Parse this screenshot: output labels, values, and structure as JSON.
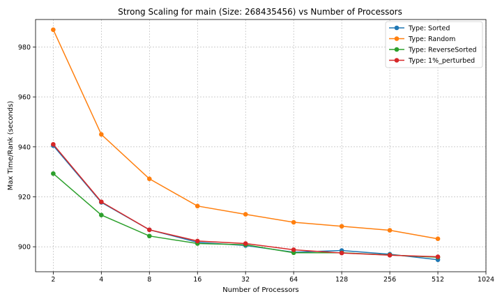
{
  "chart_data": {
    "type": "line",
    "title": "Strong Scaling for main (Size: 268435456) vs Number of Processors",
    "xlabel": "Number of Processors",
    "ylabel": "Max Time/Rank (seconds)",
    "x_scale": "log2",
    "x_ticks": [
      2,
      4,
      8,
      16,
      32,
      64,
      128,
      256,
      512,
      1024
    ],
    "xlim": [
      1.55,
      1024
    ],
    "y_ticks": [
      900,
      920,
      940,
      960,
      980
    ],
    "ylim": [
      890,
      991
    ],
    "grid": true,
    "legend_position": "top-right",
    "x": [
      2,
      4,
      8,
      16,
      32,
      64,
      128,
      256,
      512
    ],
    "series": [
      {
        "name": "Type: Sorted",
        "color": "#1f77b4",
        "values": [
          940.5,
          917.8,
          906.8,
          901.8,
          900.5,
          897.8,
          898.5,
          897.0,
          894.8
        ]
      },
      {
        "name": "Type: Random",
        "color": "#ff7f0e",
        "values": [
          986.9,
          945.0,
          927.2,
          916.3,
          913.0,
          909.8,
          908.2,
          906.6,
          903.2
        ]
      },
      {
        "name": "Type: ReverseSorted",
        "color": "#2ca02c",
        "values": [
          929.3,
          912.7,
          904.3,
          901.3,
          900.8,
          897.6,
          897.6,
          896.7,
          895.8
        ]
      },
      {
        "name": "Type: 1%_perturbed",
        "color": "#d62728",
        "values": [
          941.0,
          918.0,
          906.8,
          902.3,
          901.3,
          898.8,
          897.5,
          896.6,
          896.0
        ]
      }
    ]
  }
}
